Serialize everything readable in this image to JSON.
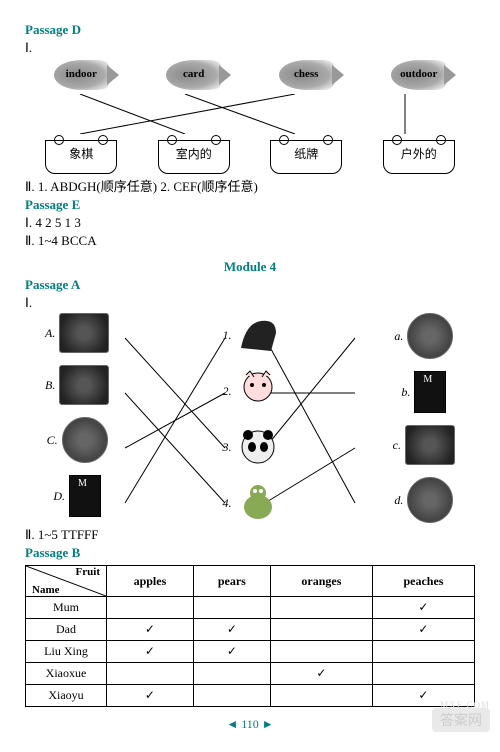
{
  "passage_d": {
    "title": "Passage D",
    "part1": "Ⅰ.",
    "fish_labels": [
      "indoor",
      "card",
      "chess",
      "outdoor"
    ],
    "pot_labels": [
      "象棋",
      "室内的",
      "纸牌",
      "户外的"
    ],
    "part2": "Ⅱ. 1. ABDGH(顺序任意)   2. CEF(顺序任意)"
  },
  "passage_e": {
    "title": "Passage E",
    "line1": "Ⅰ. 4 2 5 1 3",
    "line2": "Ⅱ. 1~4   BCCA"
  },
  "module": "Module 4",
  "passage_a": {
    "title": "Passage A",
    "part1": "Ⅰ.",
    "left_labels": [
      "A.",
      "B.",
      "C.",
      "D."
    ],
    "mid_labels": [
      "1.",
      "2.",
      "3.",
      "4."
    ],
    "right_labels": [
      "a.",
      "b.",
      "c.",
      "d."
    ],
    "part2": "Ⅱ. 1~5   TTFFF"
  },
  "passage_b": {
    "title": "Passage B",
    "header_fruit": "Fruit",
    "header_name": "Name",
    "cols": [
      "apples",
      "pears",
      "oranges",
      "peaches"
    ],
    "rows": [
      {
        "name": "Mum",
        "v": [
          "",
          "",
          "",
          "✓"
        ]
      },
      {
        "name": "Dad",
        "v": [
          "✓",
          "✓",
          "",
          "✓"
        ]
      },
      {
        "name": "Liu Xing",
        "v": [
          "✓",
          "✓",
          "",
          ""
        ]
      },
      {
        "name": "Xiaoxue",
        "v": [
          "",
          "",
          "✓",
          ""
        ]
      },
      {
        "name": "Xiaoyu",
        "v": [
          "✓",
          "",
          "",
          "✓"
        ]
      }
    ]
  },
  "page_number": "110",
  "watermark": "答案网",
  "site": "MXE.COM"
}
